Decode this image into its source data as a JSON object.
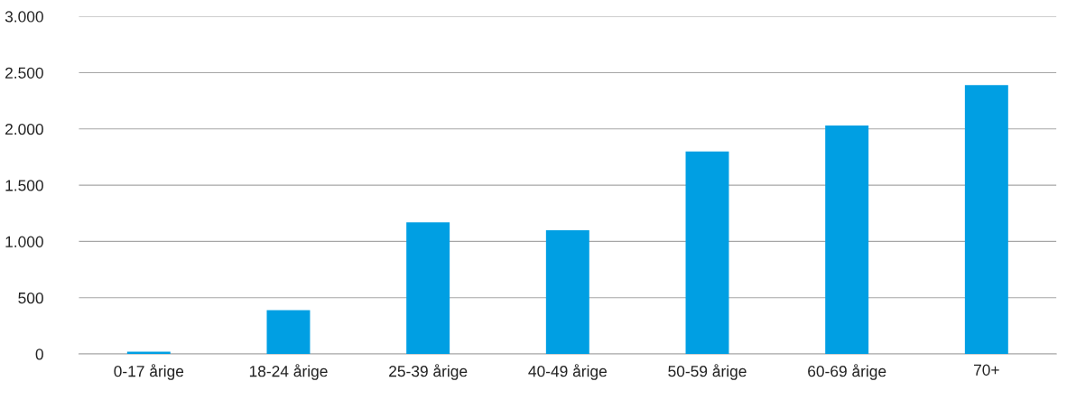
{
  "chart_data": {
    "type": "bar",
    "categories": [
      "0-17 årige",
      "18-24 årige",
      "25-39 årige",
      "40-49 årige",
      "50-59 årige",
      "60-69 årige",
      "70+"
    ],
    "values": [
      20,
      390,
      1170,
      1100,
      1800,
      2030,
      2390
    ],
    "color": "#009fe3",
    "ylim": [
      0,
      3000
    ],
    "yticks": [
      0,
      500,
      {
        "value": 1000,
        "label": "1.000"
      },
      {
        "value": 1500,
        "label": "1.500"
      },
      {
        "value": 2000,
        "label": "2.000"
      },
      {
        "value": 2500,
        "label": "2.500"
      },
      {
        "value": 3000,
        "label": "3.000"
      }
    ],
    "grid": "y",
    "legend": false
  }
}
